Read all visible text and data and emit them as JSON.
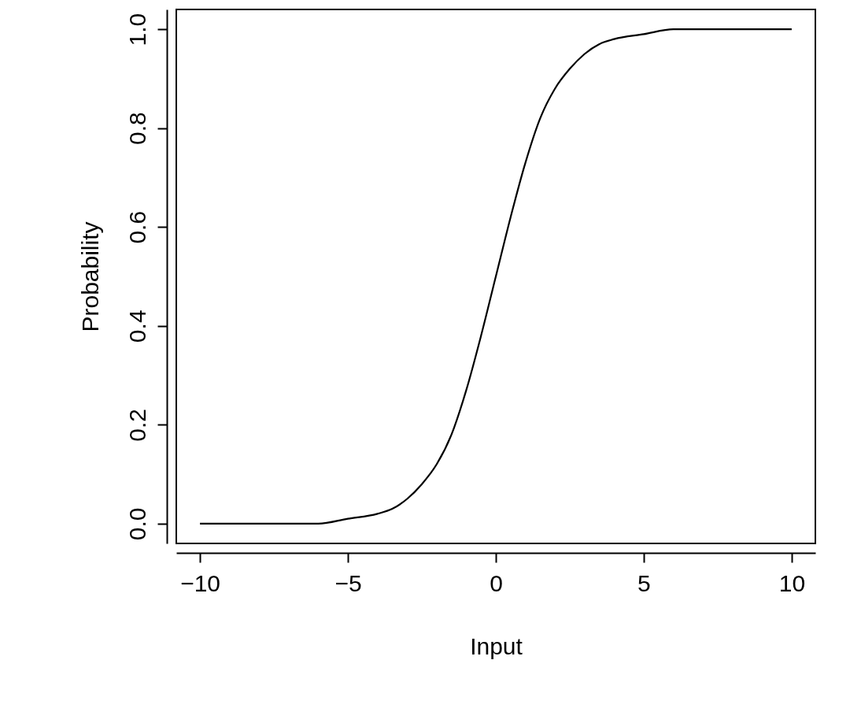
{
  "chart_data": {
    "type": "line",
    "xlabel": "Input",
    "ylabel": "Probability",
    "x": [
      -10,
      -8,
      -6,
      -5,
      -4,
      -3.5,
      -3,
      -2.5,
      -2,
      -1.5,
      -1,
      -0.5,
      0,
      0.5,
      1,
      1.5,
      2,
      2.5,
      3,
      3.5,
      4,
      5,
      6,
      8,
      10
    ],
    "series": [
      {
        "color": "#000000",
        "values": [
          0,
          0,
          0,
          0.01,
          0.02,
          0.03,
          0.05,
          0.08,
          0.12,
          0.18,
          0.27,
          0.38,
          0.5,
          0.62,
          0.73,
          0.82,
          0.88,
          0.92,
          0.95,
          0.97,
          0.98,
          0.99,
          1,
          1,
          1
        ]
      }
    ],
    "xlim": [
      -10.8,
      10.8
    ],
    "ylim": [
      -0.04,
      1.04
    ],
    "xticks": [
      -10,
      -5,
      0,
      5,
      10
    ],
    "yticks": [
      {
        "value": 0,
        "label": "0.0"
      },
      0.2,
      0.4,
      0.6,
      0.8,
      {
        "value": 1,
        "label": "1.0"
      }
    ]
  }
}
